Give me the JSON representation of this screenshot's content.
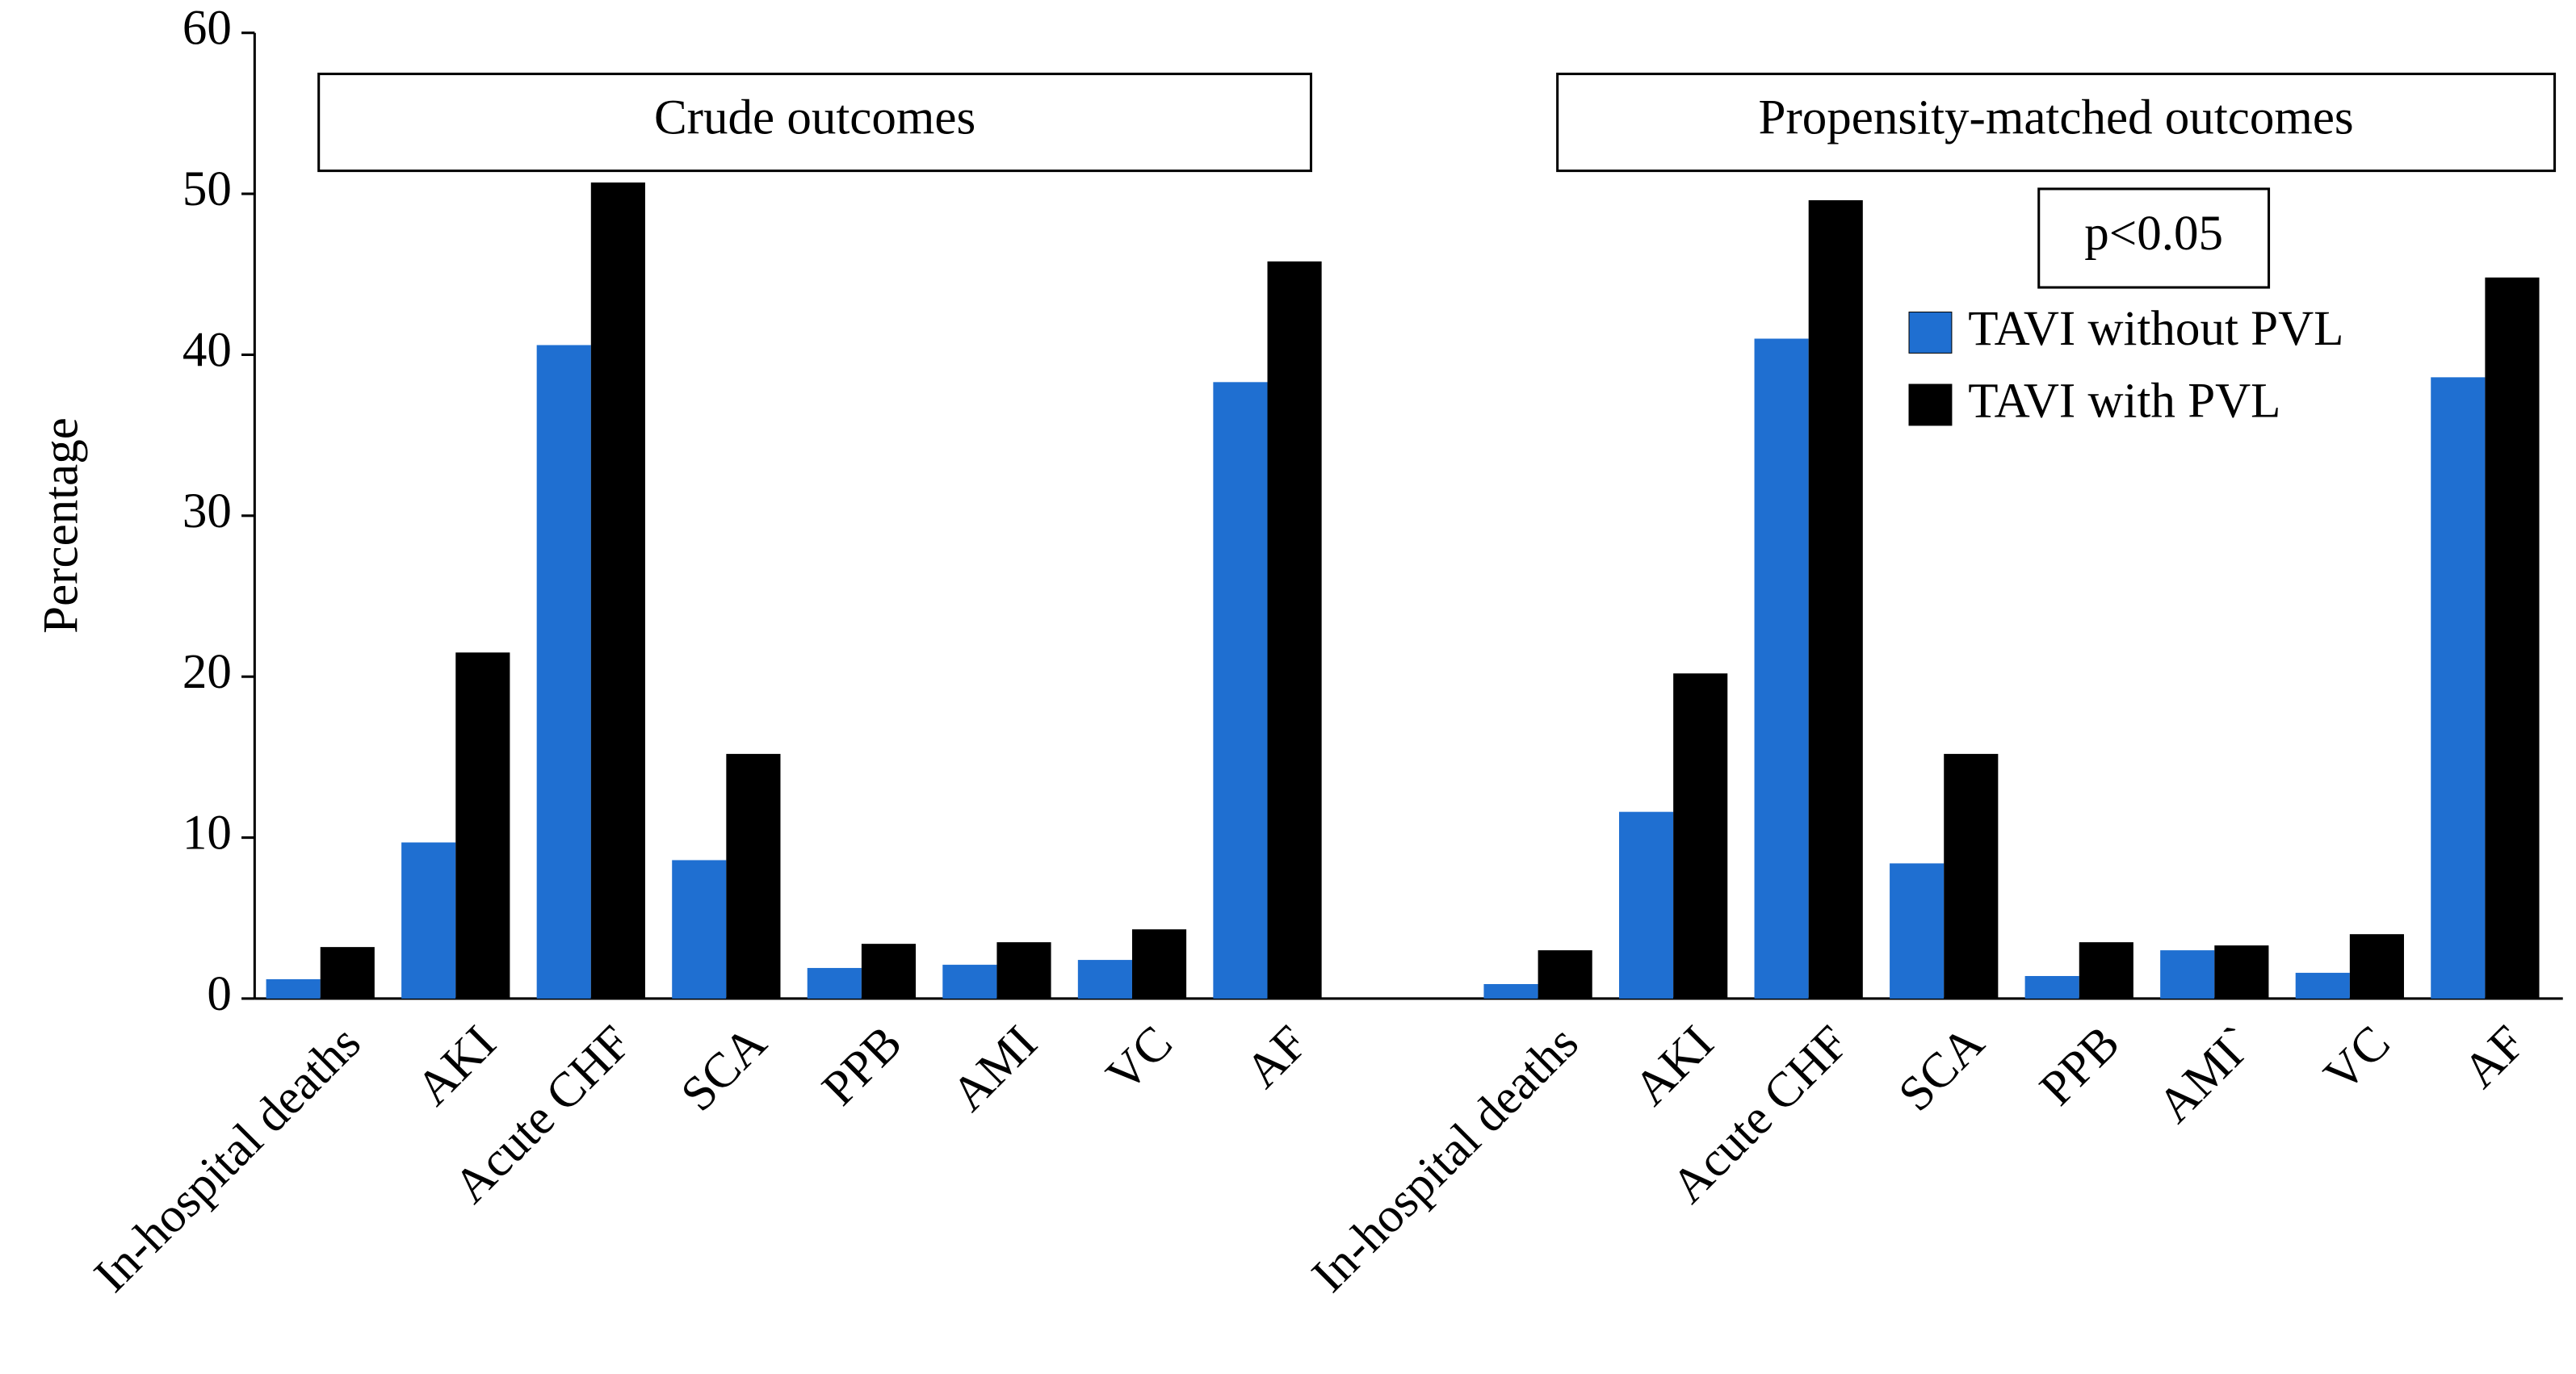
{
  "chart_data": {
    "type": "bar",
    "ylabel": "Percentage",
    "categories": [
      "In-hospital deaths",
      "AKI",
      "Acute CHF",
      "SCA",
      "PPB",
      "AMI",
      "VC",
      "AF",
      null,
      "In-hospital deaths",
      "AKI",
      "Acute CHF",
      "SCA",
      "PPB",
      "AMI`",
      "VC",
      "AF"
    ],
    "series": [
      {
        "name": "TAVI without PVL",
        "color": "#1f6fd1",
        "values": [
          1.2,
          9.7,
          40.6,
          8.6,
          1.9,
          2.1,
          2.4,
          38.3,
          null,
          0.9,
          11.6,
          41.0,
          8.4,
          1.4,
          3.0,
          1.6,
          38.6
        ]
      },
      {
        "name": "TAVI with PVL",
        "color": "#000000",
        "values": [
          3.2,
          21.5,
          50.7,
          15.2,
          3.4,
          3.5,
          4.3,
          45.8,
          null,
          3.0,
          20.2,
          49.6,
          15.2,
          3.5,
          3.3,
          4.0,
          44.8
        ]
      }
    ],
    "ylim": [
      0,
      60
    ],
    "yticks": [
      0,
      10,
      20,
      30,
      40,
      50,
      60
    ],
    "annotations": [
      "Crude outcomes",
      "Propensity-matched outcomes",
      "p<0.05"
    ],
    "legend": "upper right"
  }
}
